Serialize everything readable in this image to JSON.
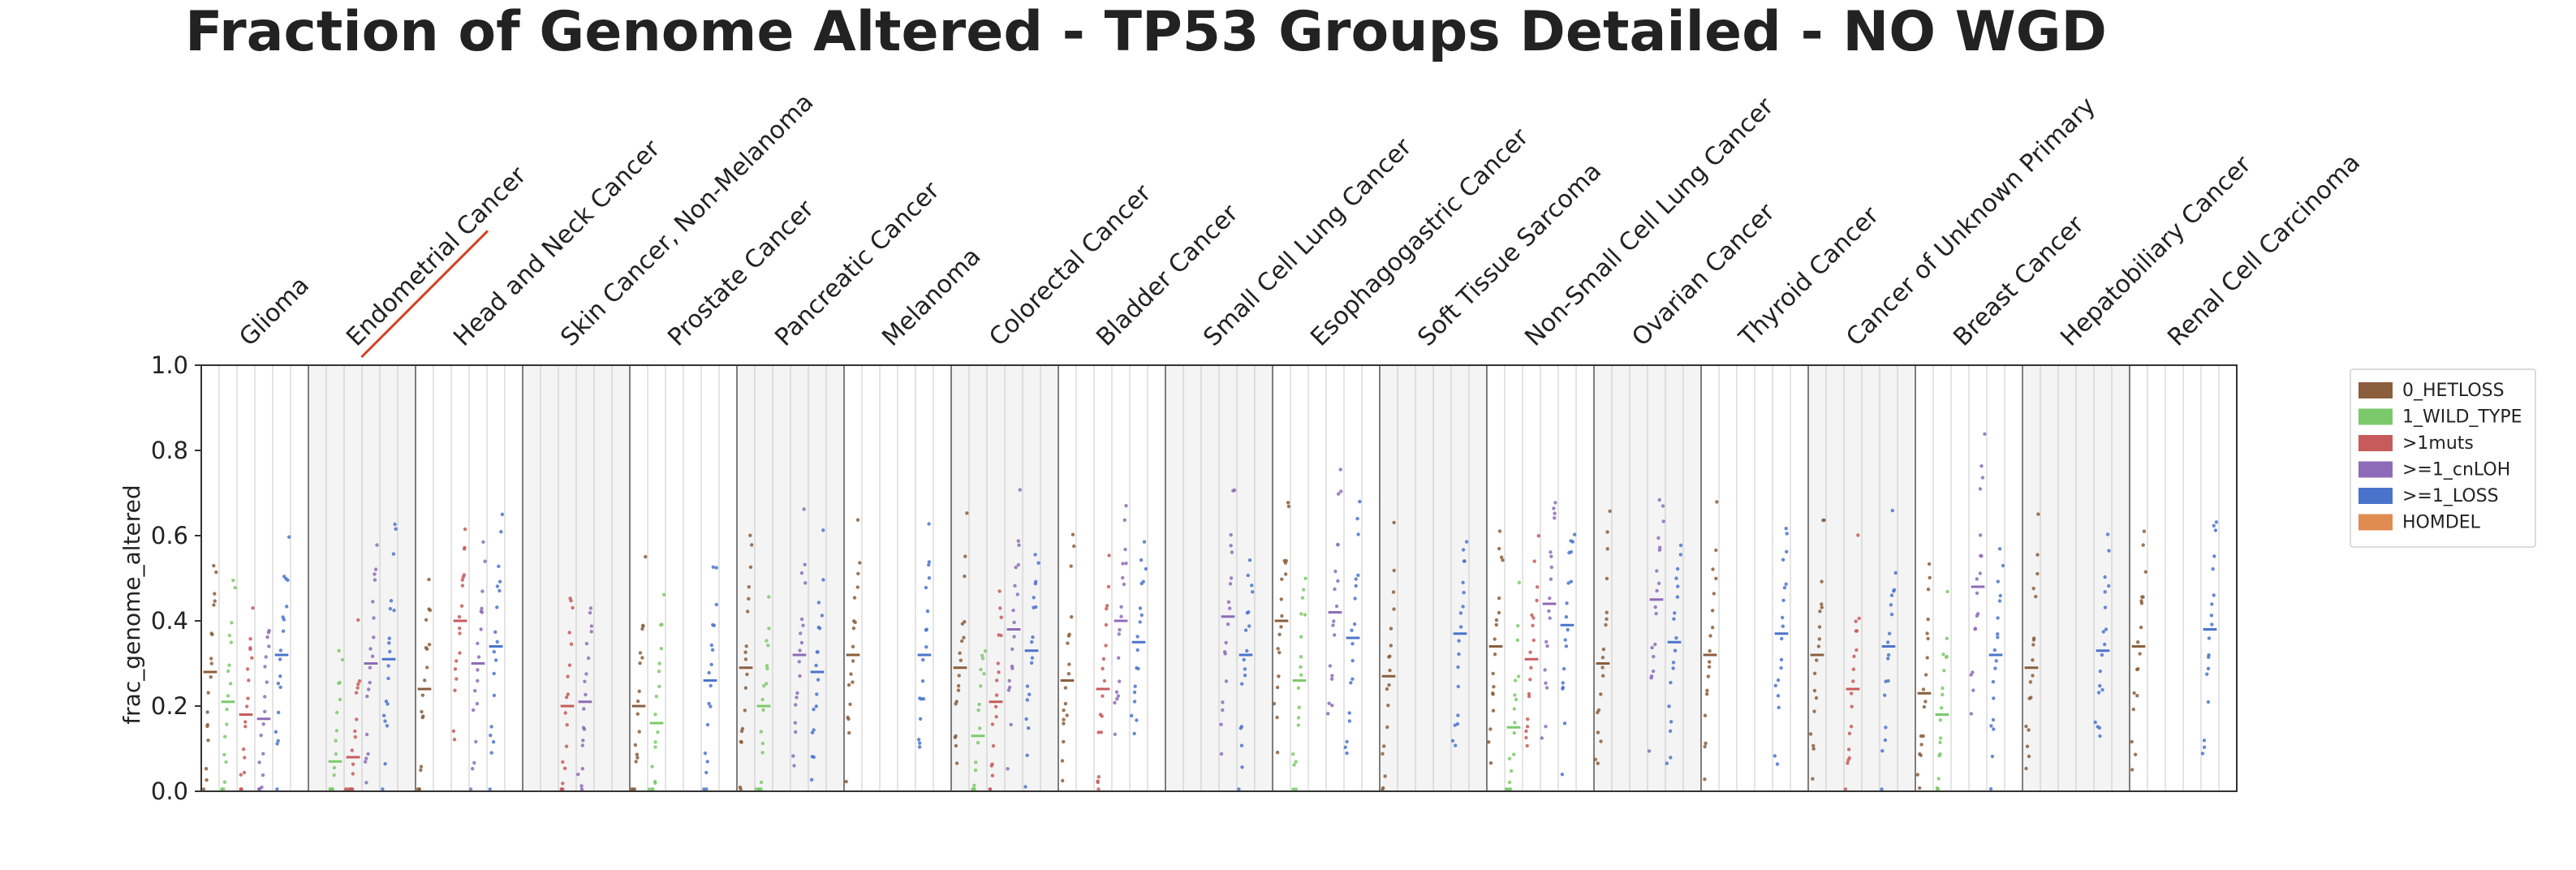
{
  "chart_data": {
    "type": "scatter",
    "title": "Fraction of Genome Altered - TP53 Groups Detailed - NO WGD",
    "xlabel": "",
    "ylabel": "frac_genome_altered",
    "ylim": [
      0.0,
      1.0
    ],
    "yticks": [
      "0.0",
      "0.2",
      "0.4",
      "0.6",
      "0.8",
      "1.0"
    ],
    "grid": false,
    "legend_position": "right",
    "series": [
      {
        "name": "0_HETLOSS",
        "color": "#8B5E3C"
      },
      {
        "name": "1_WILD_TYPE",
        "color": "#7CC96B"
      },
      {
        "name": ">1muts",
        "color": "#C75B5B"
      },
      {
        "name": ">=1_cnLOH",
        "color": "#8E6BB8"
      },
      {
        "name": ">=1_LOSS",
        "color": "#4A74CC"
      },
      {
        "name": "HOMDEL",
        "color": "#E08B50"
      }
    ],
    "categories": [
      {
        "name": "Glioma",
        "medians": [
          0.28,
          0.21,
          0.18,
          0.17,
          0.32,
          null
        ],
        "shaded": false,
        "underlined": false
      },
      {
        "name": "Endometrial Cancer",
        "medians": [
          null,
          0.07,
          0.08,
          0.3,
          0.31,
          null
        ],
        "shaded": true,
        "underlined": true
      },
      {
        "name": "Head and Neck Cancer",
        "medians": [
          0.24,
          null,
          0.4,
          0.3,
          0.34,
          null
        ],
        "shaded": false,
        "underlined": false
      },
      {
        "name": "Skin Cancer, Non-Melanoma",
        "medians": [
          null,
          null,
          0.2,
          0.21,
          null,
          null
        ],
        "shaded": true,
        "underlined": false
      },
      {
        "name": "Prostate Cancer",
        "medians": [
          0.2,
          0.16,
          null,
          null,
          0.26,
          null
        ],
        "shaded": false,
        "underlined": false
      },
      {
        "name": "Pancreatic Cancer",
        "medians": [
          0.29,
          0.2,
          null,
          0.32,
          0.28,
          null
        ],
        "shaded": true,
        "underlined": false
      },
      {
        "name": "Melanoma",
        "medians": [
          0.32,
          null,
          null,
          null,
          0.32,
          null
        ],
        "shaded": false,
        "underlined": false
      },
      {
        "name": "Colorectal Cancer",
        "medians": [
          0.29,
          0.13,
          0.21,
          0.38,
          0.33,
          null
        ],
        "shaded": true,
        "underlined": false
      },
      {
        "name": "Bladder Cancer",
        "medians": [
          0.26,
          null,
          0.24,
          0.4,
          0.35,
          null
        ],
        "shaded": false,
        "underlined": false
      },
      {
        "name": "Small Cell Lung Cancer",
        "medians": [
          null,
          null,
          null,
          0.41,
          0.32,
          null
        ],
        "shaded": true,
        "underlined": false
      },
      {
        "name": "Esophagogastric Cancer",
        "medians": [
          0.4,
          0.26,
          null,
          0.42,
          0.36,
          null
        ],
        "shaded": false,
        "underlined": false
      },
      {
        "name": "Soft Tissue Sarcoma",
        "medians": [
          0.27,
          null,
          null,
          null,
          0.37,
          null
        ],
        "shaded": true,
        "underlined": false
      },
      {
        "name": "Non-Small Cell Lung Cancer",
        "medians": [
          0.34,
          0.15,
          0.31,
          0.44,
          0.39,
          null
        ],
        "shaded": false,
        "underlined": false
      },
      {
        "name": "Ovarian Cancer",
        "medians": [
          0.3,
          null,
          null,
          0.45,
          0.35,
          null
        ],
        "shaded": true,
        "underlined": false
      },
      {
        "name": "Thyroid Cancer",
        "medians": [
          0.32,
          null,
          null,
          null,
          0.37,
          null
        ],
        "shaded": false,
        "underlined": false
      },
      {
        "name": "Cancer of Unknown Primary",
        "medians": [
          0.32,
          null,
          0.24,
          null,
          0.34,
          null
        ],
        "shaded": true,
        "underlined": false
      },
      {
        "name": "Breast Cancer",
        "medians": [
          0.23,
          0.18,
          null,
          0.48,
          0.32,
          null
        ],
        "shaded": false,
        "underlined": false
      },
      {
        "name": "Hepatobiliary Cancer",
        "medians": [
          0.29,
          null,
          null,
          null,
          0.33,
          null
        ],
        "shaded": true,
        "underlined": false
      },
      {
        "name": "Renal Cell Carcinoma",
        "medians": [
          0.34,
          null,
          null,
          null,
          0.38,
          null
        ],
        "shaded": false,
        "underlined": false
      }
    ]
  }
}
